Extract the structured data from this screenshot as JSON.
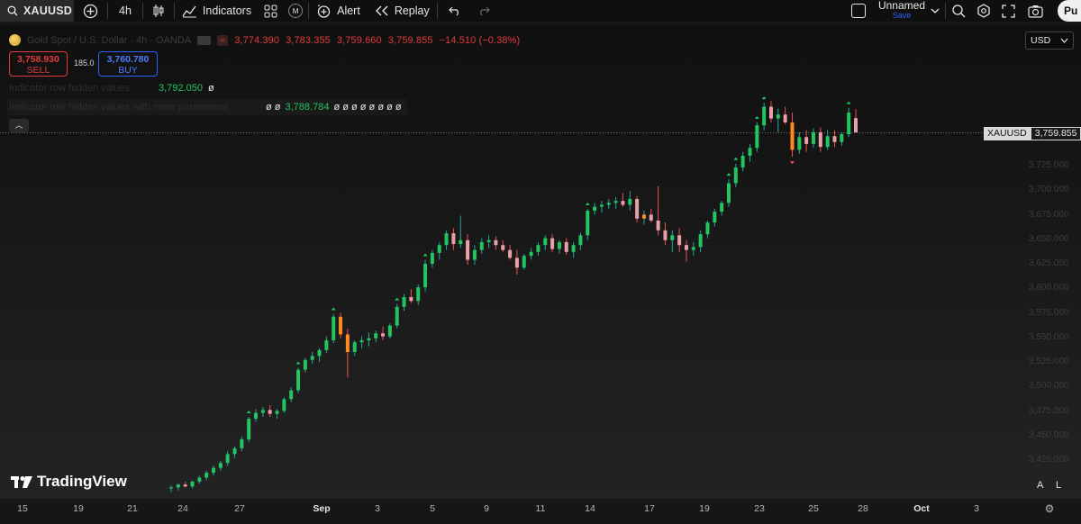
{
  "toolbar": {
    "symbol": "XAUUSD",
    "interval": "4h",
    "indicators_label": "Indicators",
    "alert_label": "Alert",
    "replay_label": "Replay",
    "layout_name": "Unnamed",
    "save_label": "Save",
    "publish_label": "Pu",
    "m_badge": "M"
  },
  "legend": {
    "title_faded": "Gold Spot / U.S. Dollar · 4h · OANDA",
    "open": "3,774.390",
    "high": "3,783.355",
    "low": "3,759.660",
    "close": "3,759.855",
    "change": "−14.510 (−0.38%)",
    "dot": "•"
  },
  "trade": {
    "sell_price": "3,758.930",
    "sell_label": "SELL",
    "spread": "185.0",
    "buy_price": "3,760.780",
    "buy_label": "BUY"
  },
  "indicators": {
    "ind1_faded": "Indicator row hidden values",
    "ind1_value": "3,792.050",
    "ind1_suffix": "ø",
    "ind2_faded": "Indicator row hidden values with more parameters",
    "ind2_prefix": "ø ø",
    "ind2_value": "3,788.784",
    "ind2_suffix": "ø ø ø ø ø ø ø ø"
  },
  "currency": "USD",
  "last_price": {
    "symbol": "XAUUSD",
    "value": "3,759.855"
  },
  "brand": "TradingView",
  "price_axis": [
    "3,725.000",
    "3,700.000",
    "3,675.000",
    "3,650.000",
    "3,625.000",
    "3,600.000",
    "3,575.000",
    "3,550.000",
    "3,525.000",
    "3,500.000",
    "3,475.000",
    "3,450.000",
    "3,425.000"
  ],
  "time_axis": [
    "15",
    "19",
    "21",
    "24",
    "27",
    "Sep",
    "3",
    "5",
    "9",
    "11",
    "14",
    "17",
    "19",
    "23",
    "25",
    "28",
    "Oct",
    "3"
  ],
  "axis_buttons": {
    "auto": "A",
    "log": "L"
  },
  "colors": {
    "up": "#26a69a",
    "up_bright": "#22c55e",
    "down": "#ef5350",
    "highlight": "#ff8a1f",
    "candle_up_body": "#7fd8d0",
    "candle_down_body": "#e8a0a8"
  },
  "chart_data": {
    "type": "candlestick",
    "symbol": "XAUUSD",
    "interval": "4h",
    "ylim": [
      3400,
      3800
    ],
    "candles": [
      [
        3397,
        3400,
        3393,
        3398
      ],
      [
        3398,
        3402,
        3395,
        3401
      ],
      [
        3401,
        3404,
        3398,
        3399
      ],
      [
        3399,
        3405,
        3397,
        3404
      ],
      [
        3404,
        3410,
        3402,
        3408
      ],
      [
        3408,
        3415,
        3405,
        3413
      ],
      [
        3413,
        3420,
        3410,
        3418
      ],
      [
        3418,
        3425,
        3415,
        3423
      ],
      [
        3423,
        3435,
        3420,
        3432
      ],
      [
        3432,
        3440,
        3428,
        3438
      ],
      [
        3438,
        3450,
        3435,
        3447
      ],
      [
        3447,
        3470,
        3444,
        3468
      ],
      [
        3468,
        3478,
        3465,
        3474
      ],
      [
        3474,
        3480,
        3470,
        3477
      ],
      [
        3477,
        3482,
        3470,
        3473
      ],
      [
        3473,
        3478,
        3468,
        3476
      ],
      [
        3476,
        3490,
        3474,
        3488
      ],
      [
        3488,
        3500,
        3485,
        3497
      ],
      [
        3497,
        3520,
        3494,
        3518
      ],
      [
        3518,
        3530,
        3515,
        3528
      ],
      [
        3528,
        3536,
        3524,
        3532
      ],
      [
        3532,
        3540,
        3526,
        3538
      ],
      [
        3538,
        3552,
        3535,
        3548
      ],
      [
        3548,
        3575,
        3545,
        3572
      ],
      [
        3572,
        3576,
        3550,
        3554
      ],
      [
        3554,
        3560,
        3510,
        3536
      ],
      [
        3536,
        3548,
        3532,
        3546
      ],
      [
        3546,
        3552,
        3540,
        3548
      ],
      [
        3548,
        3556,
        3542,
        3550
      ],
      [
        3550,
        3558,
        3546,
        3555
      ],
      [
        3555,
        3562,
        3548,
        3552
      ],
      [
        3552,
        3565,
        3550,
        3563
      ],
      [
        3563,
        3585,
        3560,
        3582
      ],
      [
        3582,
        3595,
        3578,
        3592
      ],
      [
        3592,
        3600,
        3586,
        3588
      ],
      [
        3588,
        3605,
        3584,
        3602
      ],
      [
        3602,
        3630,
        3598,
        3626
      ],
      [
        3626,
        3640,
        3622,
        3637
      ],
      [
        3637,
        3648,
        3630,
        3645
      ],
      [
        3645,
        3660,
        3640,
        3657
      ],
      [
        3657,
        3662,
        3640,
        3646
      ],
      [
        3646,
        3675,
        3642,
        3650
      ],
      [
        3650,
        3656,
        3625,
        3630
      ],
      [
        3630,
        3645,
        3625,
        3640
      ],
      [
        3640,
        3652,
        3636,
        3648
      ],
      [
        3648,
        3655,
        3642,
        3650
      ],
      [
        3650,
        3654,
        3640,
        3645
      ],
      [
        3645,
        3650,
        3638,
        3640
      ],
      [
        3640,
        3645,
        3630,
        3632
      ],
      [
        3632,
        3640,
        3615,
        3622
      ],
      [
        3622,
        3636,
        3620,
        3634
      ],
      [
        3634,
        3642,
        3630,
        3638
      ],
      [
        3638,
        3648,
        3634,
        3645
      ],
      [
        3645,
        3655,
        3640,
        3652
      ],
      [
        3652,
        3656,
        3638,
        3641
      ],
      [
        3641,
        3650,
        3636,
        3648
      ],
      [
        3648,
        3652,
        3635,
        3638
      ],
      [
        3638,
        3648,
        3632,
        3645
      ],
      [
        3645,
        3658,
        3640,
        3655
      ],
      [
        3655,
        3682,
        3650,
        3680
      ],
      [
        3680,
        3688,
        3676,
        3684
      ],
      [
        3684,
        3690,
        3678,
        3686
      ],
      [
        3686,
        3692,
        3682,
        3688
      ],
      [
        3688,
        3694,
        3682,
        3690
      ],
      [
        3690,
        3698,
        3684,
        3686
      ],
      [
        3686,
        3700,
        3680,
        3692
      ],
      [
        3692,
        3695,
        3668,
        3672
      ],
      [
        3672,
        3680,
        3666,
        3676
      ],
      [
        3676,
        3682,
        3668,
        3670
      ],
      [
        3670,
        3705,
        3655,
        3660
      ],
      [
        3660,
        3668,
        3645,
        3650
      ],
      [
        3650,
        3660,
        3638,
        3655
      ],
      [
        3655,
        3662,
        3638,
        3645
      ],
      [
        3645,
        3650,
        3628,
        3640
      ],
      [
        3640,
        3648,
        3634,
        3643
      ],
      [
        3643,
        3660,
        3638,
        3656
      ],
      [
        3656,
        3670,
        3652,
        3668
      ],
      [
        3668,
        3682,
        3664,
        3679
      ],
      [
        3679,
        3690,
        3675,
        3688
      ],
      [
        3688,
        3712,
        3684,
        3708
      ],
      [
        3708,
        3728,
        3704,
        3724
      ],
      [
        3724,
        3740,
        3720,
        3736
      ],
      [
        3736,
        3748,
        3730,
        3744
      ],
      [
        3744,
        3770,
        3740,
        3767
      ],
      [
        3767,
        3790,
        3762,
        3786
      ],
      [
        3786,
        3792,
        3770,
        3774
      ],
      [
        3774,
        3784,
        3760,
        3778
      ],
      [
        3778,
        3786,
        3768,
        3770
      ],
      [
        3770,
        3780,
        3735,
        3742
      ],
      [
        3742,
        3760,
        3738,
        3755
      ],
      [
        3755,
        3762,
        3740,
        3748
      ],
      [
        3748,
        3764,
        3744,
        3760
      ],
      [
        3760,
        3765,
        3740,
        3745
      ],
      [
        3745,
        3762,
        3742,
        3756
      ],
      [
        3756,
        3762,
        3745,
        3750
      ],
      [
        3750,
        3760,
        3746,
        3758
      ],
      [
        3758,
        3785,
        3755,
        3780
      ],
      [
        3774.39,
        3783.355,
        3759.66,
        3759.855
      ]
    ]
  }
}
